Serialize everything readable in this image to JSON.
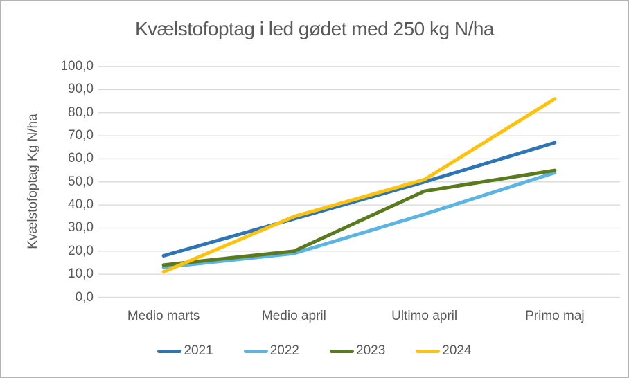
{
  "frame": {
    "background": "#FFFFFF",
    "border_color": "#B4B4B4",
    "text_color": "#595959"
  },
  "chart_data": {
    "type": "line",
    "title": "Kvælstofoptag i led gødet med 250 kg N/ha",
    "xlabel": "",
    "ylabel": "Kvælstofoptag Kg N/ha",
    "categories": [
      "Medio marts",
      "Medio april",
      "Ultimo april",
      "Primo maj"
    ],
    "series": [
      {
        "name": "2021",
        "color": "#2E75B6",
        "values": [
          18,
          34,
          50,
          67
        ]
      },
      {
        "name": "2022",
        "color": "#5BB4E2",
        "values": [
          13,
          19,
          36,
          54
        ]
      },
      {
        "name": "2023",
        "color": "#5A7A1E",
        "values": [
          14,
          20,
          46,
          55
        ]
      },
      {
        "name": "2024",
        "color": "#FFC20D",
        "values": [
          11,
          35,
          51,
          86
        ]
      }
    ],
    "ylim": [
      0,
      100
    ],
    "y_tick_step": 10,
    "y_tick_labels": [
      "100,0",
      "90,0",
      "80,0",
      "70,0",
      "60,0",
      "50,0",
      "40,0",
      "30,0",
      "20,0",
      "10,0",
      "0,0"
    ],
    "grid": "horizontal",
    "gridline_color": "#D9D9D9",
    "line_width": 5,
    "legend_position": "bottom",
    "legend_labels": [
      "2021",
      "2022",
      "2023",
      "2024"
    ]
  }
}
